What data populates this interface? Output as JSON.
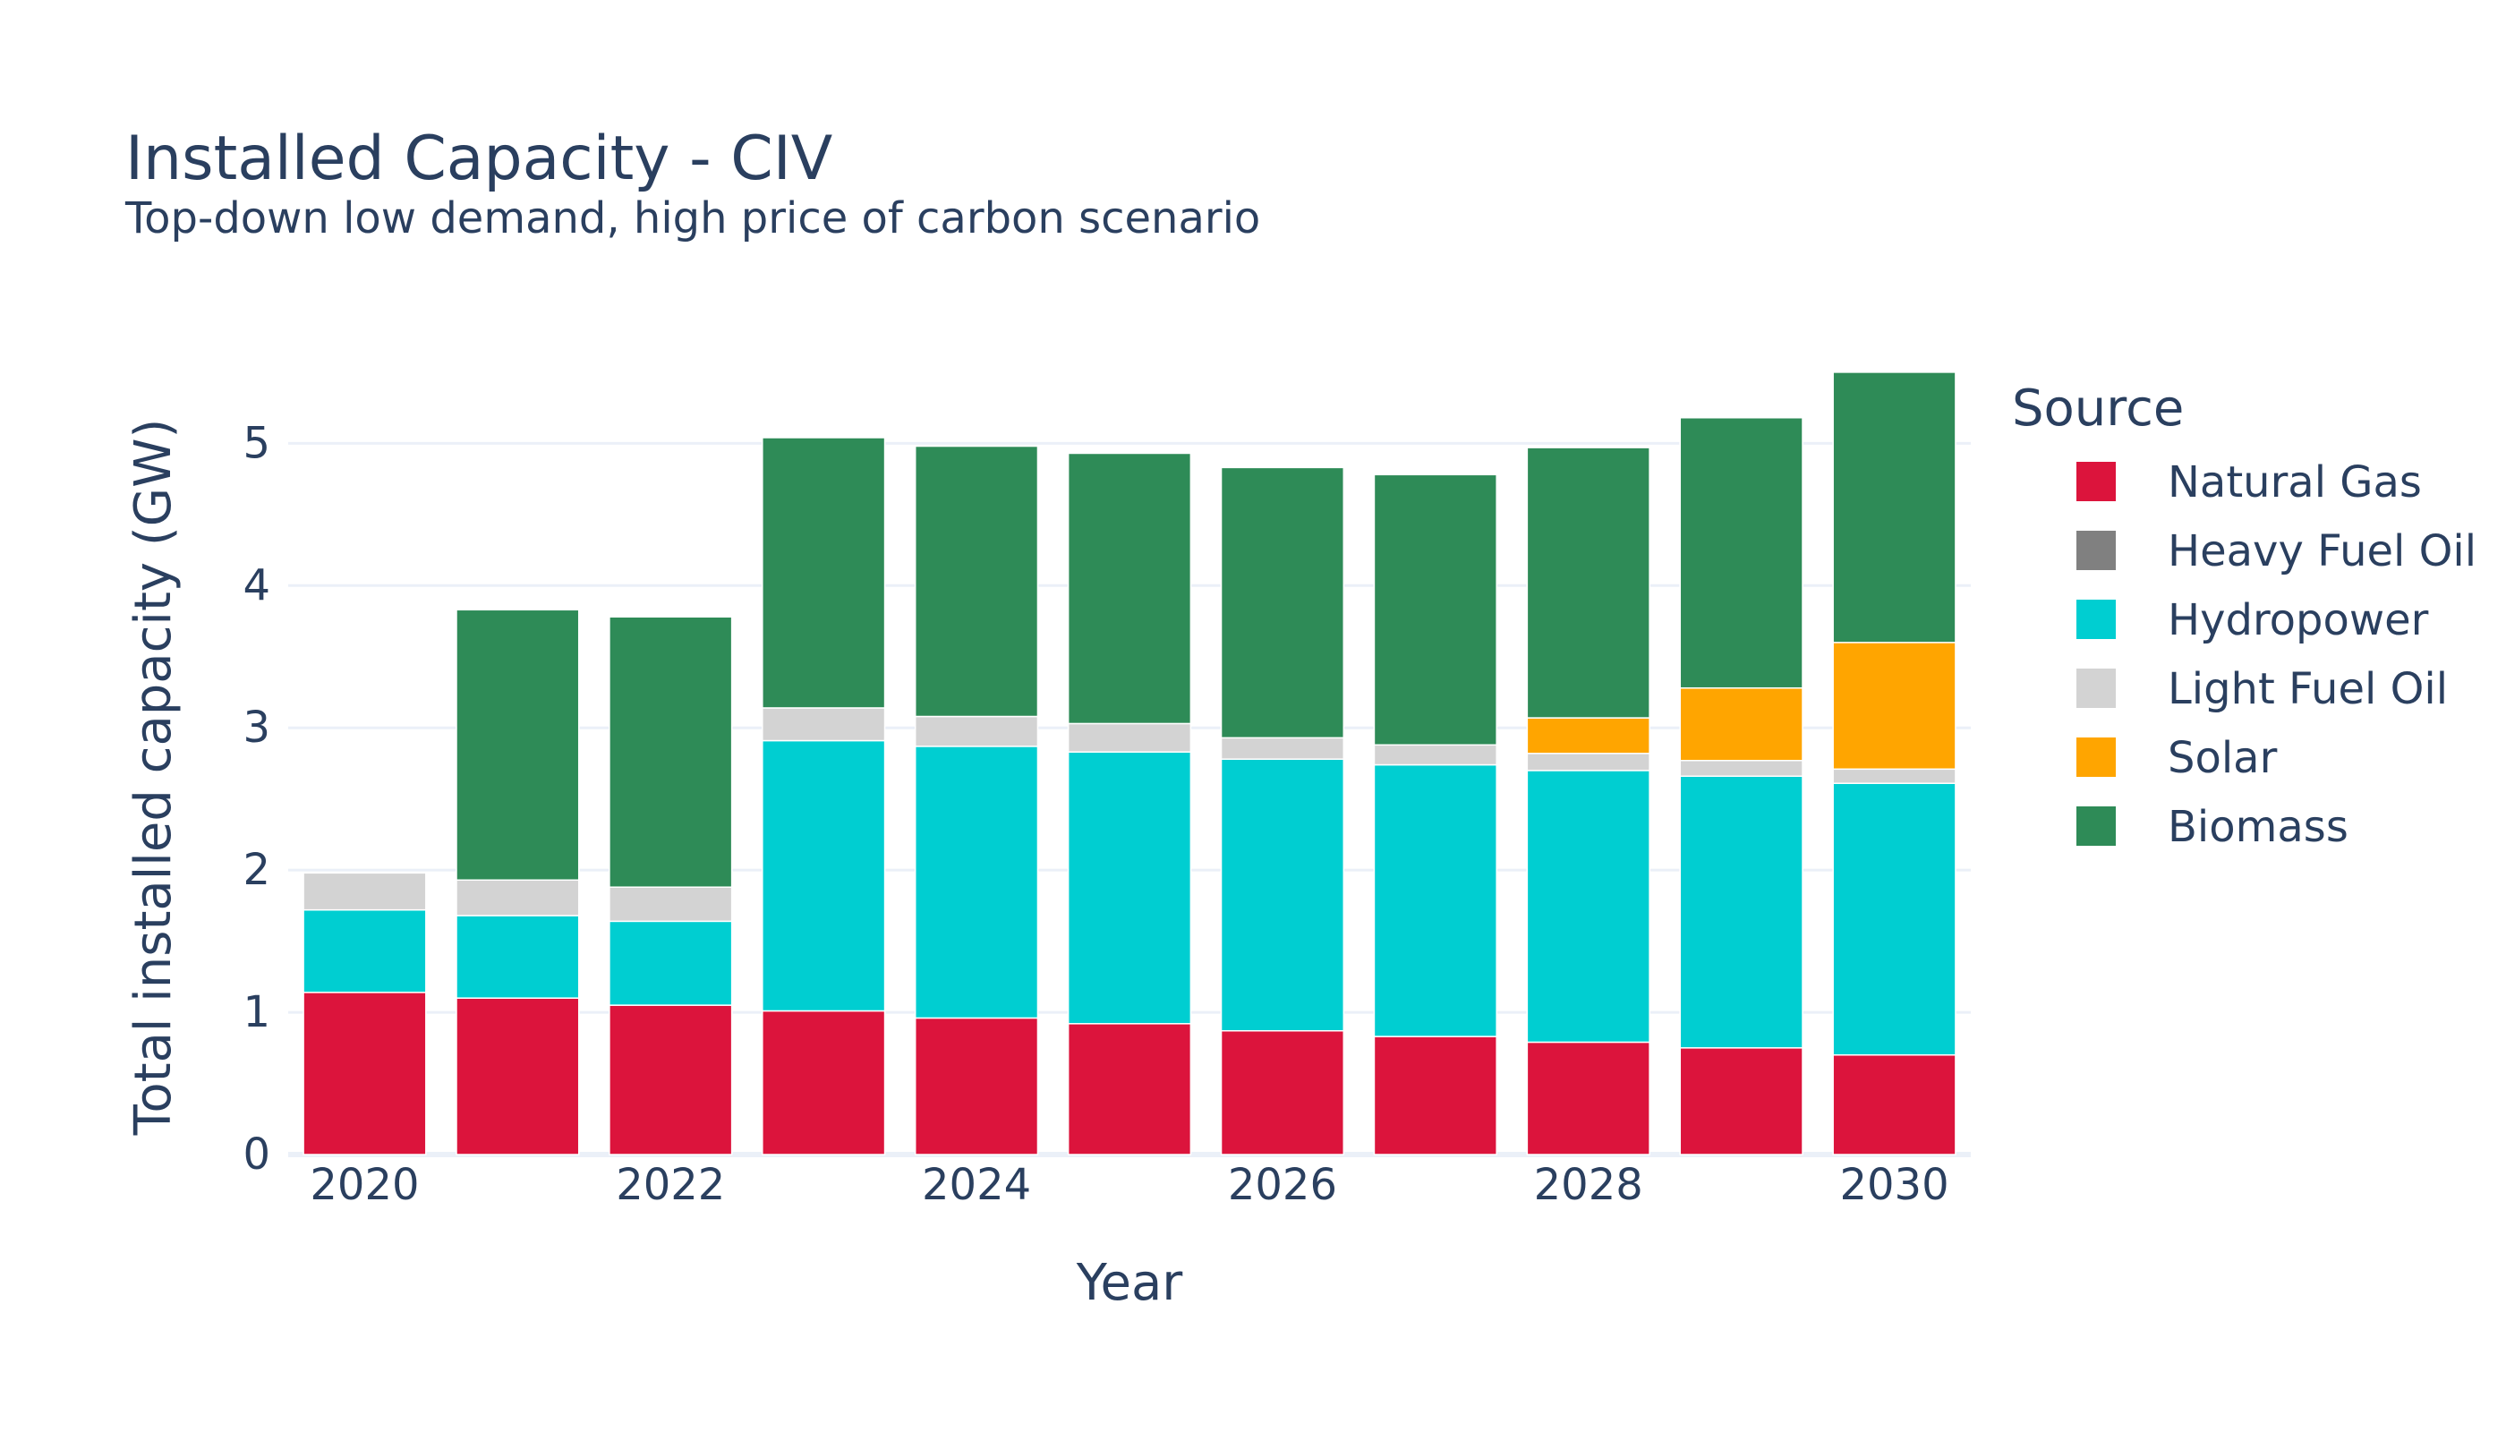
{
  "chart_data": {
    "type": "bar",
    "barmode": "stack",
    "title": "Installed Capacity - CIV",
    "subtitle": "Top-down low demand, high price of carbon scenario",
    "xlabel": "Year",
    "ylabel": "Total installed capacity (GW)",
    "x": [
      2020,
      2021,
      2022,
      2023,
      2024,
      2025,
      2026,
      2027,
      2028,
      2029,
      2030
    ],
    "x_tick_values": [
      2020,
      2022,
      2024,
      2026,
      2028,
      2030
    ],
    "x_tick_labels": [
      "2020",
      "2022",
      "2024",
      "2026",
      "2028",
      "2030"
    ],
    "ylim": [
      0,
      5.6
    ],
    "y_tick_values": [
      0,
      1,
      2,
      3,
      4,
      5
    ],
    "y_tick_labels": [
      "0",
      "1",
      "2",
      "3",
      "4",
      "5"
    ],
    "grid": true,
    "legend_title": "Source",
    "legend_position": "right",
    "series": [
      {
        "name": "Natural Gas",
        "color": "#dc143c",
        "values": [
          1.14,
          1.1,
          1.05,
          1.01,
          0.96,
          0.92,
          0.87,
          0.83,
          0.79,
          0.75,
          0.7
        ]
      },
      {
        "name": "Heavy Fuel Oil",
        "color": "#808080",
        "values": [
          0,
          0,
          0,
          0,
          0,
          0,
          0,
          0,
          0,
          0,
          0
        ]
      },
      {
        "name": "Hydropower",
        "color": "#00ced1",
        "values": [
          0.58,
          0.58,
          0.59,
          1.9,
          1.91,
          1.91,
          1.91,
          1.91,
          1.91,
          1.91,
          1.91
        ]
      },
      {
        "name": "Light Fuel Oil",
        "color": "#d3d3d3",
        "values": [
          0.26,
          0.25,
          0.24,
          0.23,
          0.21,
          0.2,
          0.15,
          0.14,
          0.12,
          0.11,
          0.1
        ]
      },
      {
        "name": "Solar",
        "color": "#ffa500",
        "values": [
          0,
          0,
          0,
          0,
          0,
          0,
          0,
          0,
          0.25,
          0.51,
          0.89
        ]
      },
      {
        "name": "Biomass",
        "color": "#2e8b57",
        "values": [
          0,
          1.9,
          1.9,
          1.9,
          1.9,
          1.9,
          1.9,
          1.9,
          1.9,
          1.9,
          1.9
        ]
      }
    ]
  }
}
